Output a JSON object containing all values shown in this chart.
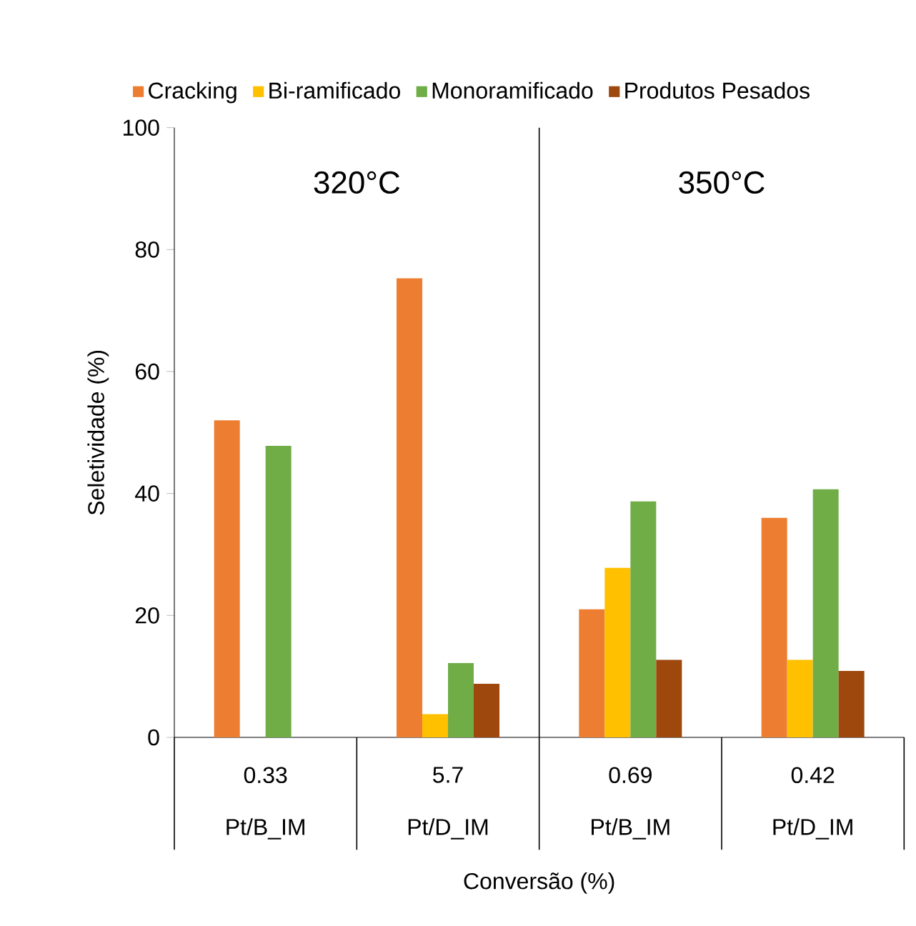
{
  "chart_data": {
    "type": "bar",
    "xlabel": "Conversão (%)",
    "ylabel": "Seletividade (%)",
    "categories": [
      "0.33",
      "5.7",
      "0.69",
      "0.42"
    ],
    "series": [
      {
        "name": "Cracking",
        "color": "#ed7d31",
        "values": [
          52,
          75.3,
          21,
          36
        ]
      },
      {
        "name": "Bi-ramificado",
        "color": "#ffc000",
        "values": [
          0,
          3.8,
          27.8,
          12.7
        ]
      },
      {
        "name": "Monoramificado",
        "color": "#70ad47",
        "values": [
          47.8,
          12.2,
          38.7,
          40.7
        ]
      },
      {
        "name": "Produtos Pesados",
        "color": "#9e480e",
        "values": [
          0,
          8.8,
          12.7,
          10.9
        ]
      }
    ],
    "ylim": [
      0,
      100
    ],
    "yticks": [
      0,
      20,
      40,
      60,
      80,
      100
    ],
    "grid": false,
    "legend": "top",
    "annotations": [
      "320°C",
      "350°C",
      "Pt/B_IM",
      "Pt/D_IM",
      "Pt/B_IM",
      "Pt/D_IM"
    ]
  }
}
